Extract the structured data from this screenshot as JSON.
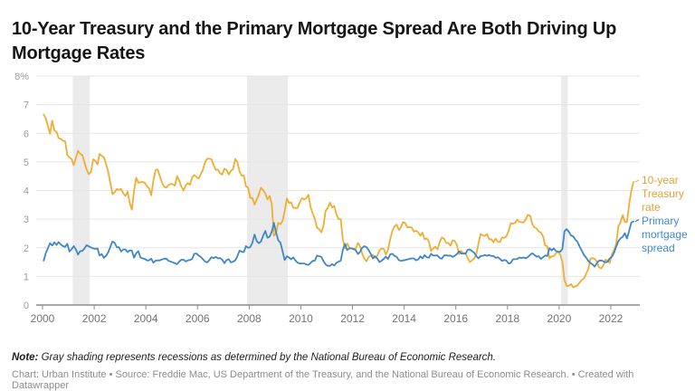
{
  "header": {
    "title": "10-Year Treasury and the Primary Mortgage Spread Are Both Driving Up Mortgage Rates"
  },
  "footer": {
    "note_label": "Note:",
    "note_text": " Gray shading represents recessions as determined by the National Bureau of Economic Research.",
    "caption": "Chart: Urban Institute • Source: Freddie Mac, US Department of the Treasury, and the National Bureau of Economic Research. • Created with Datawrapper"
  },
  "chart_data": {
    "type": "line",
    "title": "10-Year Treasury and the Primary Mortgage Spread Are Both Driving Up Mortgage Rates",
    "xlabel": "",
    "ylabel": "",
    "xlim": [
      2000,
      2023.3
    ],
    "ylim": [
      0,
      8
    ],
    "grid": "horizontal",
    "legend_position": "right-of-line-ends",
    "x_ticks": [
      2000,
      2002,
      2004,
      2006,
      2008,
      2010,
      2012,
      2014,
      2016,
      2018,
      2020,
      2022
    ],
    "x_tick_labels": [
      "2000",
      "2002",
      "2004",
      "2006",
      "2008",
      "2010",
      "2012",
      "2014",
      "2016",
      "2018",
      "2020",
      "2022"
    ],
    "y_ticks": [
      0,
      1,
      2,
      3,
      4,
      5,
      6,
      7,
      8
    ],
    "y_tick_labels": [
      "0",
      "1",
      "2",
      "3",
      "4",
      "5",
      "6",
      "7",
      "8%"
    ],
    "recessions_note": "gray bands mark NBER recessions",
    "recessions": [
      [
        2001.17,
        2001.83
      ],
      [
        2007.92,
        2009.5
      ],
      [
        2020.08,
        2020.33
      ]
    ],
    "colors": {
      "recession_band": "#ebebeb",
      "gridline": "#e6e6e6",
      "axis": "#8c8c8c",
      "y_tick_text": "#9b9b9b",
      "x_tick_text": "#737373"
    },
    "sampling": "monthly values, Jan 2000 through Nov 2022, percent",
    "series": [
      {
        "name": "10-year Treasury rate",
        "color": "#efae33",
        "label_color": "#e1a138",
        "start_year": 2000,
        "points_per_year": 12,
        "values": [
          6.66,
          6.52,
          6.26,
          5.99,
          6.44,
          6.1,
          6.05,
          5.83,
          5.8,
          5.74,
          5.72,
          5.24,
          5.16,
          5.1,
          4.89,
          5.14,
          5.39,
          5.28,
          5.24,
          4.97,
          4.73,
          4.57,
          4.65,
          5.09,
          5.04,
          4.91,
          5.28,
          5.21,
          5.16,
          4.93,
          4.65,
          4.26,
          3.87,
          3.94,
          4.05,
          4.03,
          4.05,
          3.9,
          3.81,
          3.96,
          3.57,
          3.33,
          3.98,
          4.45,
          4.27,
          4.29,
          4.3,
          4.27,
          4.15,
          4.08,
          3.83,
          4.35,
          4.72,
          4.73,
          4.5,
          4.28,
          4.13,
          4.1,
          4.19,
          4.23,
          4.22,
          4.17,
          4.5,
          4.34,
          4.14,
          4.0,
          4.18,
          4.26,
          4.2,
          4.46,
          4.54,
          4.47,
          4.42,
          4.57,
          4.72,
          4.99,
          5.11,
          5.11,
          5.09,
          4.88,
          4.72,
          4.73,
          4.6,
          4.56,
          4.76,
          4.72,
          4.56,
          4.69,
          4.75,
          5.1,
          5.0,
          4.67,
          4.52,
          4.53,
          4.15,
          4.1,
          3.74,
          3.74,
          3.51,
          3.68,
          3.88,
          4.1,
          4.01,
          3.89,
          3.69,
          3.81,
          3.53,
          2.42,
          2.52,
          2.87,
          2.82,
          2.93,
          3.29,
          3.72,
          3.56,
          3.59,
          3.4,
          3.39,
          3.4,
          3.59,
          3.73,
          3.69,
          3.73,
          3.85,
          3.42,
          3.2,
          3.01,
          2.7,
          2.65,
          2.54,
          2.76,
          3.29,
          3.39,
          3.58,
          3.41,
          3.46,
          3.17,
          3.0,
          3.0,
          2.3,
          1.98,
          2.15,
          2.01,
          1.98,
          1.97,
          1.97,
          2.17,
          2.05,
          1.8,
          1.62,
          1.53,
          1.68,
          1.72,
          1.75,
          1.65,
          1.72,
          1.91,
          1.98,
          1.96,
          1.76,
          1.93,
          2.3,
          2.58,
          2.74,
          2.81,
          2.62,
          2.72,
          2.9,
          2.86,
          2.71,
          2.72,
          2.71,
          2.56,
          2.6,
          2.54,
          2.42,
          2.53,
          2.3,
          2.33,
          2.21,
          1.88,
          1.98,
          2.04,
          1.94,
          2.2,
          2.36,
          2.32,
          2.17,
          2.17,
          2.07,
          2.26,
          2.24,
          2.09,
          1.78,
          1.89,
          1.81,
          1.81,
          1.64,
          1.5,
          1.56,
          1.63,
          1.76,
          2.14,
          2.49,
          2.43,
          2.42,
          2.48,
          2.3,
          2.3,
          2.19,
          2.32,
          2.21,
          2.2,
          2.36,
          2.35,
          2.4,
          2.58,
          2.86,
          2.84,
          2.87,
          2.98,
          2.91,
          2.89,
          2.89,
          3.0,
          3.15,
          3.12,
          2.83,
          2.71,
          2.68,
          2.57,
          2.53,
          2.4,
          2.07,
          2.06,
          1.63,
          1.7,
          1.71,
          1.81,
          1.86,
          1.76,
          1.5,
          0.87,
          0.66,
          0.67,
          0.73,
          0.62,
          0.65,
          0.68,
          0.79,
          0.87,
          0.93,
          1.08,
          1.26,
          1.61,
          1.64,
          1.62,
          1.52,
          1.32,
          1.28,
          1.37,
          1.58,
          1.56,
          1.47,
          1.76,
          1.93,
          2.13,
          2.75,
          2.9,
          3.14,
          2.9,
          2.9,
          3.52,
          3.98,
          4.3
        ]
      },
      {
        "name": "Primary mortgage spread",
        "color": "#3e86c6",
        "label_color": "#4289cb",
        "start_year": 2000,
        "points_per_year": 12,
        "values": [
          1.55,
          1.81,
          1.98,
          2.16,
          2.08,
          2.19,
          2.1,
          2.2,
          2.11,
          2.06,
          2.03,
          2.14,
          1.87,
          1.95,
          2.06,
          1.94,
          1.76,
          1.88,
          1.89,
          1.98,
          2.09,
          2.05,
          2.01,
          1.98,
          1.96,
          1.98,
          1.73,
          1.78,
          1.65,
          1.72,
          1.84,
          2.03,
          2.22,
          2.17,
          2.02,
          2.02,
          1.87,
          1.94,
          1.94,
          1.85,
          1.91,
          1.9,
          1.65,
          1.81,
          1.88,
          1.66,
          1.63,
          1.61,
          1.56,
          1.56,
          1.62,
          1.48,
          1.55,
          1.56,
          1.56,
          1.59,
          1.62,
          1.62,
          1.54,
          1.52,
          1.49,
          1.46,
          1.43,
          1.52,
          1.58,
          1.58,
          1.52,
          1.56,
          1.57,
          1.61,
          1.79,
          1.8,
          1.73,
          1.68,
          1.6,
          1.52,
          1.49,
          1.57,
          1.67,
          1.64,
          1.68,
          1.63,
          1.64,
          1.58,
          1.46,
          1.57,
          1.6,
          1.49,
          1.51,
          1.56,
          1.7,
          1.9,
          1.86,
          1.85,
          2.06,
          2.0,
          2.02,
          2.18,
          2.46,
          2.24,
          2.16,
          2.22,
          2.42,
          2.59,
          2.35,
          2.39,
          2.56,
          2.87,
          2.53,
          2.26,
          2.18,
          1.88,
          1.57,
          1.7,
          1.66,
          1.6,
          1.66,
          1.56,
          1.48,
          1.45,
          1.45,
          1.45,
          1.42,
          1.4,
          1.47,
          1.54,
          1.55,
          1.73,
          1.7,
          1.69,
          1.54,
          1.42,
          1.37,
          1.37,
          1.43,
          1.38,
          1.47,
          1.51,
          1.55,
          1.92,
          2.13,
          1.92,
          1.98,
          1.98,
          1.95,
          1.92,
          1.78,
          1.86,
          2.0,
          2.06,
          2.02,
          1.92,
          1.78,
          1.63,
          1.7,
          1.63,
          1.5,
          1.55,
          1.61,
          1.69,
          1.61,
          1.77,
          1.79,
          1.72,
          1.68,
          1.57,
          1.54,
          1.56,
          1.57,
          1.59,
          1.62,
          1.63,
          1.63,
          1.56,
          1.59,
          1.7,
          1.63,
          1.74,
          1.67,
          1.65,
          1.79,
          1.73,
          1.73,
          1.73,
          1.64,
          1.62,
          1.73,
          1.74,
          1.72,
          1.73,
          1.68,
          1.72,
          1.78,
          1.88,
          1.8,
          1.8,
          1.79,
          1.93,
          1.94,
          1.88,
          1.83,
          1.71,
          1.63,
          1.71,
          1.72,
          1.75,
          1.72,
          1.75,
          1.71,
          1.71,
          1.65,
          1.67,
          1.61,
          1.54,
          1.57,
          1.55,
          1.45,
          1.47,
          1.6,
          1.6,
          1.61,
          1.66,
          1.64,
          1.66,
          1.63,
          1.68,
          1.75,
          1.81,
          1.75,
          1.69,
          1.7,
          1.61,
          1.67,
          1.73,
          1.71,
          1.99,
          1.91,
          1.98,
          1.89,
          1.86,
          1.86,
          1.97,
          2.58,
          2.65,
          2.56,
          2.43,
          2.4,
          2.29,
          2.21,
          2.04,
          1.9,
          1.75,
          1.66,
          1.55,
          1.47,
          1.42,
          1.34,
          1.46,
          1.55,
          1.56,
          1.53,
          1.49,
          1.51,
          1.63,
          1.69,
          1.83,
          2.04,
          2.23,
          2.33,
          2.38,
          2.51,
          2.32,
          2.59,
          2.88,
          2.92
        ]
      }
    ]
  }
}
